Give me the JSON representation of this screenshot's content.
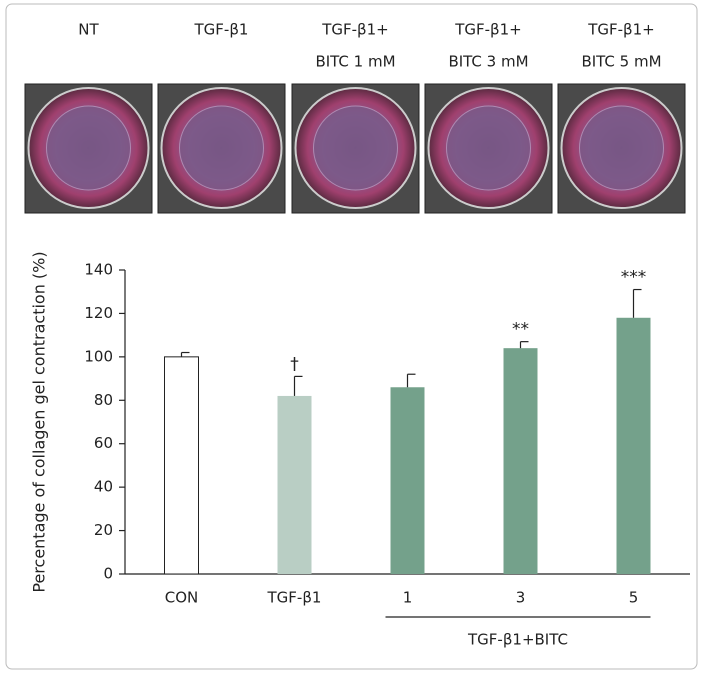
{
  "photos": {
    "labels": [
      [
        "NT"
      ],
      [
        "TGF-β1"
      ],
      [
        "TGF-β1+",
        "BITC 1 mM"
      ],
      [
        "TGF-β1+",
        "BITC 3 mM"
      ],
      [
        "TGF-β1+",
        "BITC 5 mM"
      ]
    ]
  },
  "chart_data": {
    "type": "bar",
    "categories": [
      "CON",
      "TGF-β1",
      "1",
      "3",
      "5"
    ],
    "values": [
      100,
      82,
      86,
      104,
      118
    ],
    "errors": [
      2,
      9,
      6,
      3,
      13
    ],
    "colors": [
      "#ffffff",
      "#b9cec4",
      "#74a18b",
      "#74a18b",
      "#74a18b"
    ],
    "annotations": [
      null,
      "†",
      null,
      "**",
      "***"
    ],
    "group_label": "TGF-β1+BITC",
    "y_label": "Percentage of collagen gel contraction (%)",
    "ylim": [
      0,
      140
    ],
    "yticks": [
      0,
      20,
      40,
      60,
      80,
      100,
      120,
      140
    ]
  }
}
